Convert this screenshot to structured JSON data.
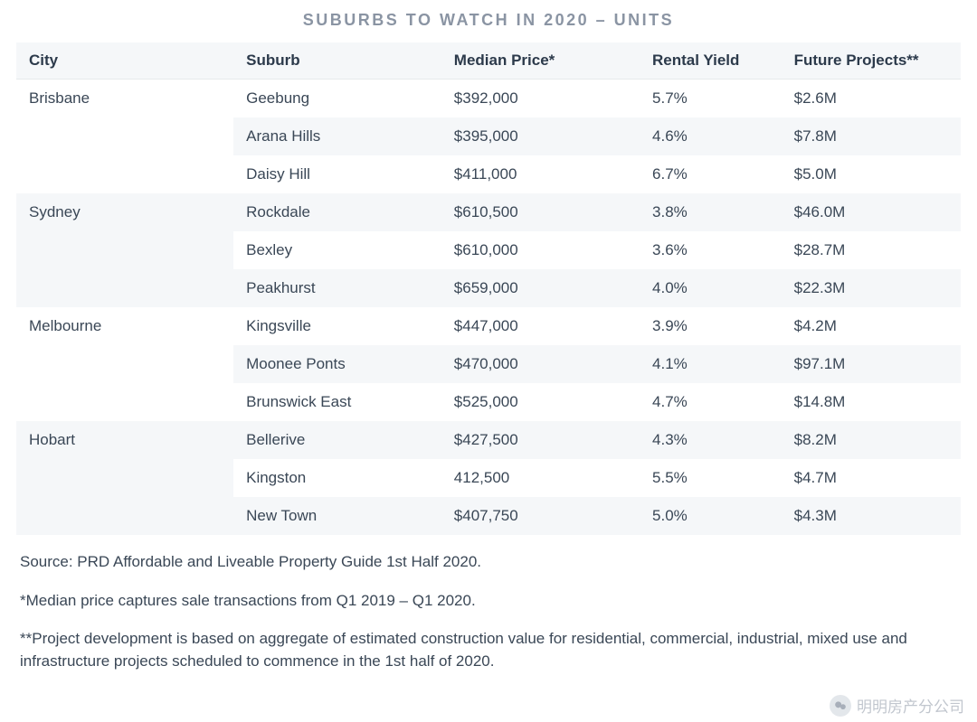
{
  "title": "SUBURBS TO WATCH IN 2020 – UNITS",
  "colors": {
    "title": "#8a94a3",
    "header_bg": "#f5f7f9",
    "row_alt_bg": "#f5f7f9",
    "row_bg": "#ffffff",
    "text": "#3a4756",
    "header_text": "#2c3a4b",
    "border": "#e6e9ec",
    "watermark": "#b7bdc6"
  },
  "table": {
    "columns": [
      "City",
      "Suburb",
      "Median Price*",
      "Rental Yield",
      "Future Projects**"
    ],
    "groups": [
      {
        "city": "Brisbane",
        "rows": [
          {
            "suburb": "Geebung",
            "price": "$392,000",
            "yield": "5.7%",
            "projects": "$2.6M"
          },
          {
            "suburb": "Arana Hills",
            "price": "$395,000",
            "yield": "4.6%",
            "projects": "$7.8M"
          },
          {
            "suburb": "Daisy Hill",
            "price": "$411,000",
            "yield": "6.7%",
            "projects": "$5.0M"
          }
        ]
      },
      {
        "city": "Sydney",
        "rows": [
          {
            "suburb": "Rockdale",
            "price": "$610,500",
            "yield": "3.8%",
            "projects": "$46.0M"
          },
          {
            "suburb": "Bexley",
            "price": "$610,000",
            "yield": "3.6%",
            "projects": "$28.7M"
          },
          {
            "suburb": "Peakhurst",
            "price": "$659,000",
            "yield": "4.0%",
            "projects": "$22.3M"
          }
        ]
      },
      {
        "city": "Melbourne",
        "rows": [
          {
            "suburb": "Kingsville",
            "price": "$447,000",
            "yield": "3.9%",
            "projects": "$4.2M"
          },
          {
            "suburb": "Moonee Ponts",
            "price": "$470,000",
            "yield": "4.1%",
            "projects": "$97.1M"
          },
          {
            "suburb": "Brunswick East",
            "price": "$525,000",
            "yield": "4.7%",
            "projects": "$14.8M"
          }
        ]
      },
      {
        "city": "Hobart",
        "rows": [
          {
            "suburb": "Bellerive",
            "price": "$427,500",
            "yield": "4.3%",
            "projects": "$8.2M"
          },
          {
            "suburb": "Kingston",
            "price": "412,500",
            "yield": "5.5%",
            "projects": "$4.7M"
          },
          {
            "suburb": "New Town",
            "price": "$407,750",
            "yield": "5.0%",
            "projects": "$4.3M"
          }
        ]
      }
    ]
  },
  "footnotes": [
    "Source: PRD Affordable and Liveable Property Guide 1st Half 2020.",
    "*Median price captures sale transactions from Q1 2019 – Q1 2020.",
    "**Project development is based on aggregate of estimated construction value for residential, commercial, industrial, mixed use and infrastructure projects scheduled to commence in the 1st half of 2020."
  ],
  "watermark": {
    "text": "明明房产分公司"
  }
}
